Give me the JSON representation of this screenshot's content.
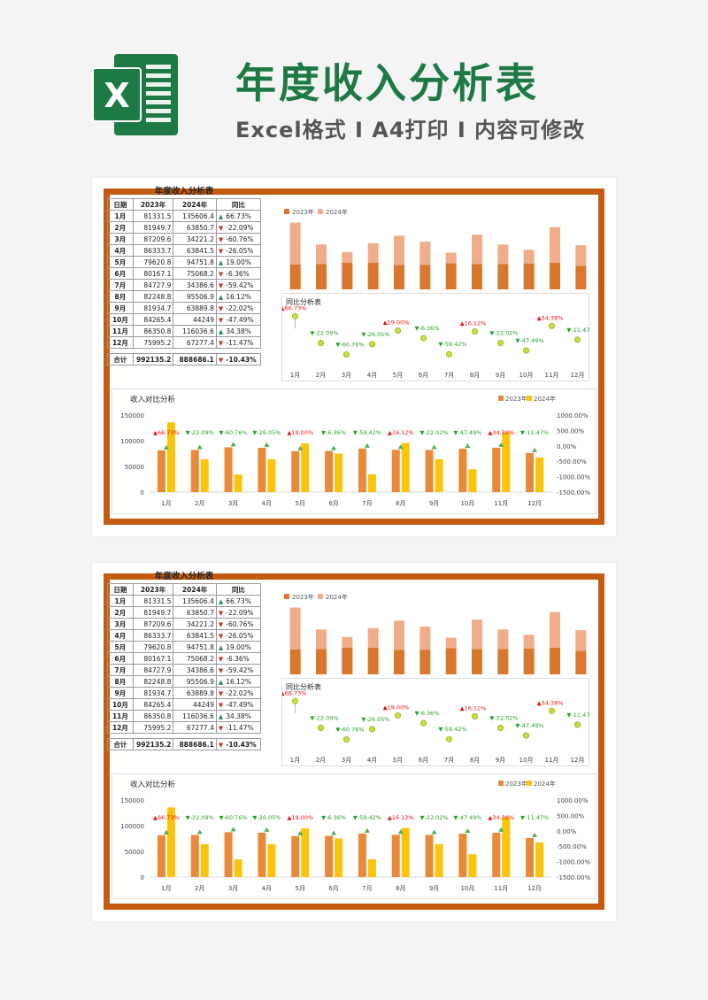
{
  "header": {
    "title": "年度收入分析表",
    "subtitle": "Excel格式 I A4打印 I 内容可修改",
    "logo_letter": "X"
  },
  "colors": {
    "brand_green": "#1e7a45",
    "frame_orange": "#c55a11",
    "bar_2023": "#e98a3a",
    "bar_2024": "#fcc30b",
    "stack_2023": "#d9772e",
    "stack_2024": "#f1ad8a",
    "up_red": "#ee1111",
    "down_green": "#2aa02a"
  },
  "table": {
    "title": "年度收入分析表",
    "headers": [
      "日期",
      "2023年",
      "2024年",
      "同比"
    ],
    "rows": [
      {
        "month": "1月",
        "y2023": "81331.5",
        "y2024": "135606.4",
        "yoy": "66.73%",
        "dir": "up"
      },
      {
        "month": "2月",
        "y2023": "81949.7",
        "y2024": "63850.7",
        "yoy": "-22.09%",
        "dir": "down"
      },
      {
        "month": "3月",
        "y2023": "87209.6",
        "y2024": "34221.2",
        "yoy": "-60.76%",
        "dir": "down"
      },
      {
        "month": "4月",
        "y2023": "86333.7",
        "y2024": "63841.5",
        "yoy": "-26.05%",
        "dir": "down"
      },
      {
        "month": "5月",
        "y2023": "79620.8",
        "y2024": "94751.8",
        "yoy": "19.00%",
        "dir": "up"
      },
      {
        "month": "6月",
        "y2023": "80167.1",
        "y2024": "75068.2",
        "yoy": "-6.36%",
        "dir": "down"
      },
      {
        "month": "7月",
        "y2023": "84727.9",
        "y2024": "34386.6",
        "yoy": "-59.42%",
        "dir": "down"
      },
      {
        "month": "8月",
        "y2023": "82248.8",
        "y2024": "95506.9",
        "yoy": "16.12%",
        "dir": "up"
      },
      {
        "month": "9月",
        "y2023": "81934.7",
        "y2024": "63889.8",
        "yoy": "-22.02%",
        "dir": "down"
      },
      {
        "month": "10月",
        "y2023": "84265.4",
        "y2024": "44249",
        "yoy": "-47.49%",
        "dir": "down"
      },
      {
        "month": "11月",
        "y2023": "86350.8",
        "y2024": "116036.6",
        "yoy": "34.38%",
        "dir": "up"
      },
      {
        "month": "12月",
        "y2023": "75995.2",
        "y2024": "67277.4",
        "yoy": "-11.47%",
        "dir": "down"
      }
    ],
    "total": {
      "label": "合计",
      "y2023": "992135.2",
      "y2024": "888686.1",
      "yoy": "-10.43%",
      "dir": "down"
    }
  },
  "chart_data": [
    {
      "type": "bar",
      "stacked": true,
      "title": "",
      "categories": [
        "1月",
        "2月",
        "3月",
        "4月",
        "5月",
        "6月",
        "7月",
        "8月",
        "9月",
        "10月",
        "11月",
        "12月"
      ],
      "series": [
        {
          "name": "2023年",
          "values": [
            81331.5,
            81949.7,
            87209.6,
            86333.7,
            79620.8,
            80167.1,
            84727.9,
            82248.8,
            81934.7,
            84265.4,
            86350.8,
            75995.2
          ]
        },
        {
          "name": "2024年",
          "values": [
            135606.4,
            63850.7,
            34221.2,
            63841.5,
            94751.8,
            75068.2,
            34386.6,
            95506.9,
            63889.8,
            44249,
            116036.6,
            67277.4
          ]
        }
      ],
      "legend": "top-left",
      "axes_visible": false
    },
    {
      "type": "line",
      "title": "同比分析表",
      "categories": [
        "1月",
        "2月",
        "3月",
        "4月",
        "5月",
        "6月",
        "7月",
        "8月",
        "9月",
        "10月",
        "11月",
        "12月"
      ],
      "values": [
        66.73,
        -22.09,
        -60.76,
        -26.05,
        19.0,
        -6.36,
        -59.42,
        16.12,
        -22.02,
        -47.49,
        34.38,
        -11.47
      ],
      "labels": [
        "66.73%",
        "-22.09%",
        "-60.76%",
        "-26.05%",
        "19.00%",
        "-6.36%",
        "-59.42%",
        "16.12%",
        "-22.02%",
        "-47.49%",
        "34.38%",
        "-11.47%"
      ],
      "markers": "circle",
      "line": false
    },
    {
      "type": "bar",
      "title": "收入对比分析",
      "categories": [
        "1月",
        "2月",
        "3月",
        "4月",
        "5月",
        "6月",
        "7月",
        "8月",
        "9月",
        "10月",
        "11月",
        "12月"
      ],
      "series": [
        {
          "name": "2023年",
          "values": [
            81331.5,
            81949.7,
            87209.6,
            86333.7,
            79620.8,
            80167.1,
            84727.9,
            82248.8,
            81934.7,
            84265.4,
            86350.8,
            75995.2
          ]
        },
        {
          "name": "2024年",
          "values": [
            135606.4,
            63850.7,
            34221.2,
            63841.5,
            94751.8,
            75068.2,
            34386.6,
            95506.9,
            63889.8,
            44249,
            116036.6,
            67277.4
          ]
        }
      ],
      "yticks": [
        "150000",
        "100000",
        "50000",
        "0"
      ],
      "ylim": [
        0,
        150000
      ],
      "y2ticks": [
        "1000.00%",
        "500.00%",
        "0.00%",
        "-500.00%",
        "-1000.00%",
        "-1500.00%"
      ],
      "y2lim": [
        -1500,
        1000
      ],
      "yoy_labels": [
        "66.73%",
        "-22.09%",
        "-60.76%",
        "-26.05%",
        "19.00%",
        "-6.36%",
        "-59.42%",
        "16.12%",
        "-22.02%",
        "-47.49%",
        "34.38%",
        "-11.47%"
      ],
      "legend": "top-right"
    }
  ]
}
